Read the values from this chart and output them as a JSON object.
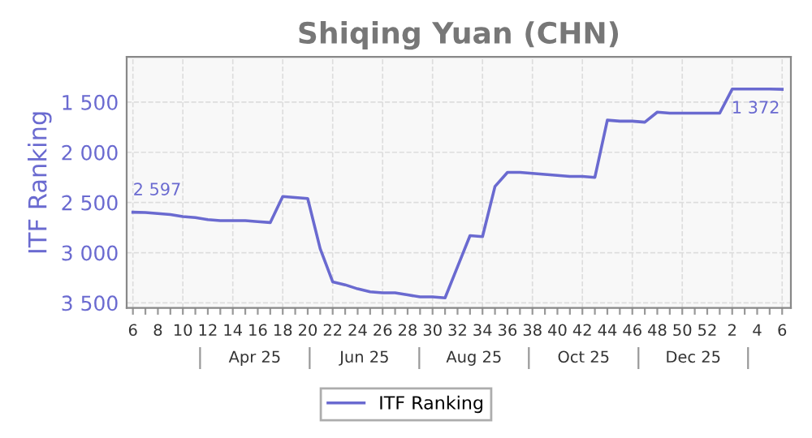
{
  "chart_data": {
    "type": "line",
    "title": "Shiqing Yuan (CHN)",
    "ylabel": "ITF Ranking",
    "categories": [
      "6",
      null,
      "8",
      null,
      "10",
      null,
      "12",
      null,
      "14",
      null,
      "16",
      null,
      "18",
      null,
      "20",
      null,
      "22",
      null,
      "24",
      null,
      "26",
      null,
      "28",
      null,
      "30",
      null,
      "32",
      null,
      "34",
      null,
      "36",
      null,
      "38",
      null,
      "40",
      null,
      "42",
      null,
      "44",
      null,
      "46",
      null,
      "48",
      null,
      "50",
      null,
      "52",
      null,
      "2",
      null,
      "4",
      null,
      "6"
    ],
    "series": [
      {
        "name": "ITF Ranking",
        "color": "#6a6ad0",
        "values": [
          2597,
          2600,
          2610,
          2620,
          2640,
          2650,
          2670,
          2680,
          2680,
          2680,
          2690,
          2700,
          2440,
          2450,
          2460,
          2960,
          3290,
          3320,
          3360,
          3390,
          3400,
          3400,
          3420,
          3440,
          3440,
          3450,
          3140,
          2830,
          2840,
          2340,
          2200,
          2200,
          2210,
          2220,
          2230,
          2240,
          2240,
          2250,
          1680,
          1690,
          1690,
          1700,
          1600,
          1610,
          1610,
          1610,
          1610,
          1610,
          1370,
          1370,
          1370,
          1370,
          1372
        ],
        "value_labels": [
          "2 597",
          null,
          null,
          null,
          null,
          null,
          null,
          null,
          null,
          null,
          null,
          null,
          null,
          null,
          null,
          null,
          null,
          null,
          null,
          null,
          null,
          null,
          null,
          null,
          null,
          null,
          null,
          null,
          null,
          null,
          null,
          null,
          null,
          null,
          null,
          null,
          null,
          null,
          null,
          null,
          null,
          null,
          null,
          null,
          null,
          null,
          null,
          null,
          null,
          null,
          null,
          null,
          "1 372"
        ]
      }
    ],
    "annotations": [
      "Apr 25",
      "Jun 25",
      "Aug 25",
      "Oct 25",
      "Dec 25"
    ],
    "ylim": [
      3550,
      1050
    ],
    "yticks": [
      {
        "value": 1500,
        "label": "1 500"
      },
      {
        "value": 2000,
        "label": "2 000"
      },
      {
        "value": 2500,
        "label": "2 500"
      },
      {
        "value": 3000,
        "label": "3 000"
      },
      {
        "value": 3500,
        "label": "3 500"
      }
    ],
    "grid": true,
    "legend": "bottom",
    "marker": "none",
    "line_style": "solid"
  }
}
